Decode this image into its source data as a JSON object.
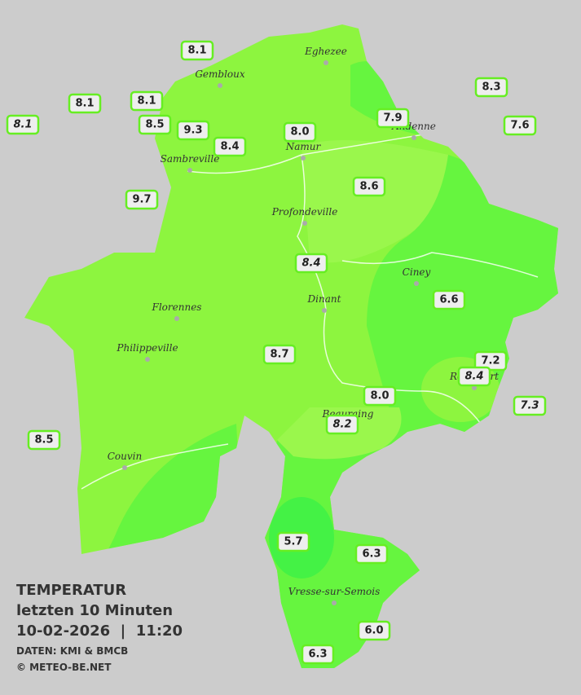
{
  "cities": [
    "Eghezee",
    "Gembloux",
    "Andenne",
    "Namur",
    "Sambreville",
    "Profondeville",
    "Ciney",
    "Dinant",
    "Florennes",
    "Philippeville",
    "Rochefort",
    "Beauraing",
    "Couvin",
    "Vresse-sur-Semois"
  ],
  "stations": [
    "8.1",
    "8.3",
    "8.1",
    "8.1",
    "8.1",
    "8.5",
    "9.3",
    "8.0",
    "7.9",
    "7.6",
    "8.4",
    "8.6",
    "9.7",
    "8.4",
    "6.6",
    "8.7",
    "7.2",
    "8.4",
    "8.0",
    "7.3",
    "8.2",
    "8.5",
    "5.7",
    "6.3",
    "6.0",
    "6.3"
  ],
  "legend": {
    "title": "TEMPERATUR",
    "period": "letzten 10 Minuten",
    "datetime": "10-02-2026  |  11:20",
    "source": "DATEN: KMI & BMCB",
    "copyright": "© METEO-BE.NET"
  }
}
